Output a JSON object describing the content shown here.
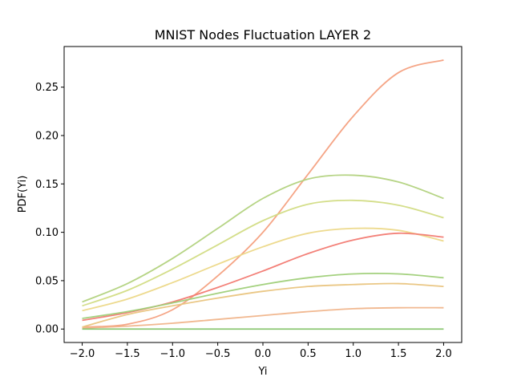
{
  "chart_data": {
    "type": "line",
    "title": "MNIST Nodes Fluctuation LAYER 2",
    "xlabel": "Yi",
    "ylabel": "PDF(Yi)",
    "xlim": [
      -2.2,
      2.2
    ],
    "ylim": [
      -0.0139,
      0.292
    ],
    "grid": false,
    "legend": "none",
    "x_ticks": [
      -2.0,
      -1.5,
      -1.0,
      -0.5,
      0.0,
      0.5,
      1.0,
      1.5,
      2.0
    ],
    "x_tick_labels": [
      "−2.0",
      "−1.5",
      "−1.0",
      "−0.5",
      "0.0",
      "0.5",
      "1.0",
      "1.5",
      "2.0"
    ],
    "y_ticks": [
      0.0,
      0.05,
      0.1,
      0.15,
      0.2,
      0.25
    ],
    "y_tick_labels": [
      "0.00",
      "0.05",
      "0.10",
      "0.15",
      "0.20",
      "0.25"
    ],
    "x": [
      -2.0,
      -1.5,
      -1.0,
      -0.5,
      0.0,
      0.5,
      1.0,
      1.5,
      2.0
    ],
    "series": [
      {
        "color": "#f4a07f",
        "values": [
          0.002,
          0.005,
          0.02,
          0.055,
          0.1,
          0.16,
          0.22,
          0.265,
          0.278
        ]
      },
      {
        "color": "#b2d27e",
        "values": [
          0.028,
          0.047,
          0.073,
          0.104,
          0.135,
          0.155,
          0.159,
          0.152,
          0.135
        ]
      },
      {
        "color": "#d2dc84",
        "values": [
          0.024,
          0.04,
          0.062,
          0.087,
          0.112,
          0.129,
          0.133,
          0.128,
          0.115
        ]
      },
      {
        "color": "#ecd888",
        "values": [
          0.019,
          0.031,
          0.048,
          0.067,
          0.085,
          0.099,
          0.104,
          0.102,
          0.091
        ]
      },
      {
        "color": "#f27a72",
        "values": [
          0.009,
          0.017,
          0.028,
          0.043,
          0.06,
          0.078,
          0.092,
          0.099,
          0.095
        ]
      },
      {
        "color": "#9fcf78",
        "values": [
          0.011,
          0.018,
          0.027,
          0.037,
          0.046,
          0.053,
          0.057,
          0.057,
          0.053
        ]
      },
      {
        "color": "#e9c47e",
        "values": [
          0.002,
          0.015,
          0.024,
          0.032,
          0.039,
          0.044,
          0.046,
          0.047,
          0.044
        ]
      },
      {
        "color": "#f0b48a",
        "values": [
          0.001,
          0.003,
          0.006,
          0.01,
          0.014,
          0.018,
          0.021,
          0.022,
          0.022
        ]
      },
      {
        "color": "#86c46c",
        "values": [
          0.0,
          0.0,
          0.0,
          0.0,
          0.0,
          0.0,
          0.0,
          0.0,
          0.0
        ]
      }
    ]
  }
}
